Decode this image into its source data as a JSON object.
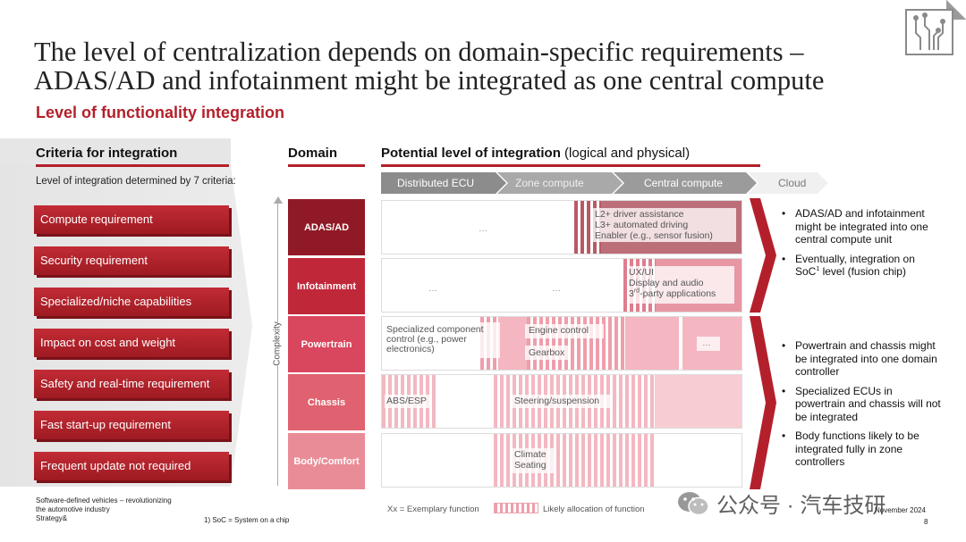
{
  "title_lines": [
    "The level of centralization depends on domain-specific requirements –",
    "ADAS/AD and infotainment might be integrated as one central compute"
  ],
  "subtitle": "Level of functionality integration",
  "criteria": {
    "header": "Criteria for integration",
    "description": "Level of integration determined by 7 criteria:",
    "items": [
      "Compute requirement",
      "Security requirement",
      "Specialized/niche capabilities",
      "Impact on cost and weight",
      "Safety and real-time requirement",
      "Fast start-up requirement",
      "Frequent update not required"
    ]
  },
  "domain": {
    "header": "Domain",
    "axis_label": "Complexity",
    "items": [
      {
        "label": "ADAS/AD",
        "color": "#8f1a25"
      },
      {
        "label": "Infotainment",
        "color": "#c0283a"
      },
      {
        "label": "Powertrain",
        "color": "#d9475e"
      },
      {
        "label": "Chassis",
        "color": "#e0616f"
      },
      {
        "label": "Body/Comfort",
        "color": "#ea8c97"
      }
    ]
  },
  "integration": {
    "header_bold": "Potential level of integration",
    "header_rest": " (logical and physical)",
    "stages": [
      "Distributed ECU",
      "Zone compute",
      "Central compute",
      "Cloud"
    ],
    "rows": {
      "adas": {
        "dots": "…",
        "functions": [
          "L2+ driver assistance",
          "L3+ automated driving",
          "Enabler (e.g., sensor fusion)"
        ]
      },
      "infotainment": {
        "dots1": "…",
        "dots2": "…",
        "functions": [
          "UX/UI",
          "Display and audio",
          "3rd-party applications"
        ]
      },
      "powertrain": {
        "specialized": [
          "Specialized component",
          "control (e.g., power",
          "electronics)"
        ],
        "engine": "Engine control",
        "gearbox": "Gearbox",
        "dots": "…"
      },
      "chassis": {
        "abs": "ABS/ESP",
        "steering": "Steering/suspension"
      },
      "body": {
        "climate": [
          "Climate",
          "Seating"
        ]
      }
    }
  },
  "bullets": {
    "group1": [
      "ADAS/AD and infotainment might be integrated into one central compute unit",
      "Eventually, integration on SoC"
    ],
    "soc_rest": " level (fusion chip)",
    "group2": [
      "Powertrain and chassis might be integrated into one domain controller",
      "Specialized ECUs in powertrain and chassis will not be integrated",
      "Body functions likely to be integrated fully in zone controllers"
    ]
  },
  "footer": {
    "source_lines": [
      "Software-defined vehicles – revolutionizing",
      "the automotive industry",
      "Strategy&"
    ],
    "footnote": "1) SoC = System on a chip",
    "legend_example": "Xx = Exemplary function",
    "legend_allocation": "Likely allocation of function",
    "watermark": "公众号 · 汽车技研",
    "date": "November 2024",
    "page": "8"
  },
  "colors": {
    "accent": "#b3202b"
  }
}
